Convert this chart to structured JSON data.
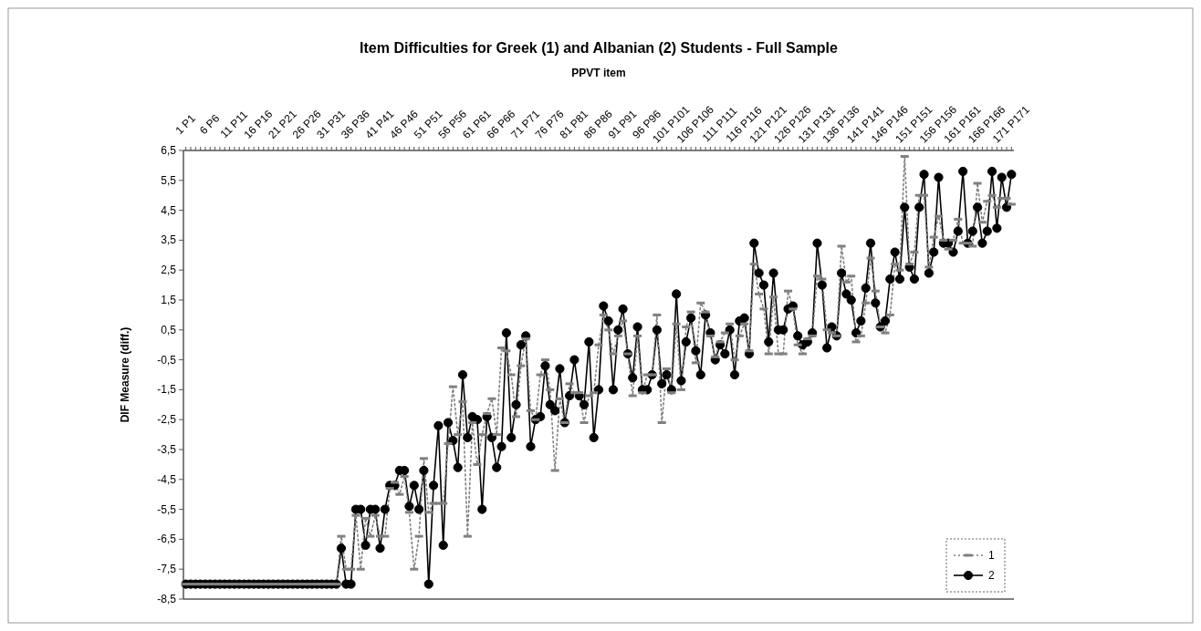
{
  "chart_data": {
    "type": "line",
    "title": "Item Difficulties for Greek (1) and Albanian (2) Students - Full Sample",
    "xlabel": "PPVT item",
    "ylabel": "DIF Measure (diff.)",
    "categories": [
      "1 P1",
      null,
      null,
      null,
      null,
      "6 P6",
      null,
      null,
      null,
      null,
      "11 P11",
      null,
      null,
      null,
      null,
      "16 P16",
      null,
      null,
      null,
      null,
      "21 P21",
      null,
      null,
      null,
      null,
      "26 P26",
      null,
      null,
      null,
      null,
      "31 P31",
      null,
      null,
      null,
      null,
      "36 P36",
      null,
      null,
      null,
      null,
      "41 P41",
      null,
      null,
      null,
      null,
      "46 P46",
      null,
      null,
      null,
      null,
      "51 P51",
      null,
      null,
      null,
      null,
      "56 P56",
      null,
      null,
      null,
      null,
      "61 P61",
      null,
      null,
      null,
      null,
      "66 P66",
      null,
      null,
      null,
      null,
      "71 P71",
      null,
      null,
      null,
      null,
      "76 P76",
      null,
      null,
      null,
      null,
      "81 P81",
      null,
      null,
      null,
      null,
      "86 P86",
      null,
      null,
      null,
      null,
      "91 P91",
      null,
      null,
      null,
      null,
      "96 P96",
      null,
      null,
      null,
      null,
      "101 P101",
      null,
      null,
      null,
      null,
      "106 P106",
      null,
      null,
      null,
      null,
      "111 P111",
      null,
      null,
      null,
      null,
      "116 P116",
      null,
      null,
      null,
      null,
      "121 P121",
      null,
      null,
      null,
      null,
      "126 P126",
      null,
      null,
      null,
      null,
      "131 P131",
      null,
      null,
      null,
      null,
      "136 P136",
      null,
      null,
      null,
      null,
      "141 P141",
      null,
      null,
      null,
      null,
      "146 P146",
      null,
      null,
      null,
      null,
      "151 P151",
      null,
      null,
      null,
      null,
      "156 P156",
      null,
      null,
      null,
      null,
      "161 P161",
      null,
      null,
      null,
      null,
      "166 P166",
      null,
      null,
      null,
      null,
      "171 P171"
    ],
    "series": [
      {
        "name": "1",
        "color": "#808080",
        "line_style": "dotted",
        "marker": "square",
        "values": [
          -8,
          -8,
          -8,
          -8,
          -8,
          -8,
          -8,
          -8,
          -8,
          -8,
          -8,
          -8,
          -8,
          -8,
          -8,
          -8,
          -8,
          -8,
          -8,
          -8,
          -8,
          -8,
          -8,
          -8,
          -8,
          -8,
          -8,
          -8,
          -8,
          -8,
          -8,
          -8,
          -6.4,
          -7.5,
          -7.5,
          -5.7,
          -7.5,
          -5.8,
          -6.4,
          -5.7,
          -6.4,
          -6.4,
          -4.8,
          -4.6,
          -5.0,
          -4.4,
          -5.6,
          -7.5,
          -6.4,
          -3.8,
          -5.6,
          -5.3,
          -5.3,
          -5.3,
          -3.3,
          -1.4,
          -3.0,
          -1.9,
          -6.4,
          -2.6,
          -4.0,
          -3.0,
          -2.3,
          -1.8,
          -3.0,
          -0.1,
          -0.2,
          -1.0,
          -2.4,
          -0.7,
          0.2,
          -2.2,
          -2.5,
          -1.0,
          -0.5,
          -1.5,
          -4.2,
          -1.8,
          -2.6,
          -1.3,
          -1.6,
          -1.6,
          -2.6,
          -1.7,
          -1.6,
          0.0,
          1.0,
          0.5,
          -0.3,
          0.3,
          0.8,
          -0.3,
          -1.7,
          0.3,
          -1.6,
          -1.0,
          -1.0,
          1.0,
          -2.6,
          -0.8,
          -1.6,
          0.7,
          -1.5,
          0.6,
          1.1,
          -0.6,
          1.4,
          1.1,
          0.3,
          -0.4,
          0.1,
          0.4,
          0.7,
          -0.5,
          0.3,
          0.7,
          -0.2,
          2.7,
          1.7,
          1.2,
          -0.3,
          1.6,
          -0.3,
          -0.3,
          1.8,
          1.2,
          0.0,
          -0.3,
          0.2,
          0.3,
          2.3,
          2.2,
          0.5,
          0.4,
          0.3,
          3.3,
          2.1,
          2.3,
          0.1,
          0.3,
          1.4,
          2.9,
          1.8,
          0.6,
          0.4,
          1.0,
          2.7,
          2.5,
          6.3,
          2.7,
          3.1,
          5.0,
          5.0,
          2.6,
          3.6,
          4.3,
          3.5,
          3.2,
          3.5,
          4.2,
          3.4,
          3.4,
          3.3,
          5.4,
          4.1,
          4.8,
          5.0,
          4.6,
          4.9,
          4.9,
          4.7
        ]
      },
      {
        "name": "2",
        "color": "#000000",
        "line_style": "solid",
        "marker": "circle",
        "values": [
          -8,
          -8,
          -8,
          -8,
          -8,
          -8,
          -8,
          -8,
          -8,
          -8,
          -8,
          -8,
          -8,
          -8,
          -8,
          -8,
          -8,
          -8,
          -8,
          -8,
          -8,
          -8,
          -8,
          -8,
          -8,
          -8,
          -8,
          -8,
          -8,
          -8,
          -8,
          -8,
          -6.8,
          -8,
          -8,
          -5.5,
          -5.5,
          -6.7,
          -5.5,
          -5.5,
          -6.8,
          -5.5,
          -4.7,
          -4.7,
          -4.2,
          -4.2,
          -5.4,
          -4.7,
          -5.5,
          -4.2,
          -8,
          -4.7,
          -2.7,
          -6.7,
          -2.6,
          -3.2,
          -4.1,
          -1.0,
          -3.1,
          -2.4,
          -2.5,
          -5.5,
          -2.4,
          -3.1,
          -4.1,
          -3.4,
          0.4,
          -3.1,
          -2.0,
          0.0,
          0.3,
          -3.4,
          -2.5,
          -2.4,
          -0.7,
          -2.0,
          -2.2,
          -0.8,
          -2.6,
          -1.7,
          -0.5,
          -1.7,
          -2.0,
          0.1,
          -3.1,
          -1.5,
          1.3,
          0.8,
          -1.5,
          0.5,
          1.2,
          -0.3,
          -1.1,
          0.6,
          -1.5,
          -1.5,
          -1.0,
          0.5,
          -1.3,
          -1.0,
          -1.5,
          1.7,
          -1.2,
          0.1,
          0.9,
          -0.2,
          -1.0,
          1.0,
          0.4,
          -0.5,
          0.0,
          -0.3,
          0.5,
          -1.0,
          0.8,
          0.9,
          -0.3,
          3.4,
          2.4,
          2.0,
          0.1,
          2.4,
          0.5,
          0.5,
          1.2,
          1.3,
          0.3,
          0.0,
          0.1,
          0.4,
          3.4,
          2.0,
          -0.1,
          0.6,
          0.3,
          2.4,
          1.7,
          1.5,
          0.4,
          0.8,
          1.9,
          3.4,
          1.4,
          0.6,
          0.8,
          2.2,
          3.1,
          2.2,
          4.6,
          2.6,
          2.2,
          4.6,
          5.7,
          2.4,
          3.1,
          5.6,
          3.4,
          3.4,
          3.1,
          3.8,
          5.8,
          3.4,
          3.8,
          4.6,
          3.4,
          3.8,
          5.8,
          3.9,
          5.6,
          4.6,
          5.7
        ]
      }
    ],
    "ylim": [
      -8.5,
      6.5
    ],
    "yticks": [
      {
        "value": 6.5,
        "label": "6,5"
      },
      {
        "value": 5.5,
        "label": "5,5"
      },
      {
        "value": 4.5,
        "label": "4,5"
      },
      {
        "value": 3.5,
        "label": "3,5"
      },
      {
        "value": 2.5,
        "label": "2,5"
      },
      {
        "value": 1.5,
        "label": "1,5"
      },
      {
        "value": 0.5,
        "label": "0,5"
      },
      {
        "value": -0.5,
        "label": "-0,5"
      },
      {
        "value": -1.5,
        "label": "-1,5"
      },
      {
        "value": -2.5,
        "label": "-2,5"
      },
      {
        "value": -3.5,
        "label": "-3,5"
      },
      {
        "value": -4.5,
        "label": "-4,5"
      },
      {
        "value": -5.5,
        "label": "-5,5"
      },
      {
        "value": -6.5,
        "label": "-6,5"
      },
      {
        "value": -7.5,
        "label": "-7,5"
      },
      {
        "value": -8.5,
        "label": "-8,5"
      }
    ],
    "legend": "bottom right"
  }
}
